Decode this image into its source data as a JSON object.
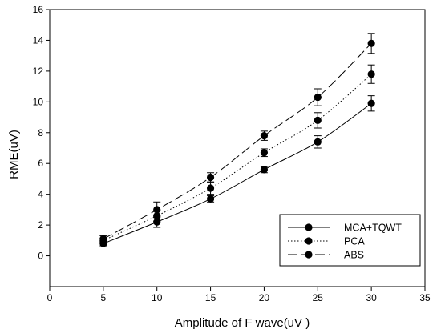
{
  "chart_data": {
    "type": "line",
    "xlabel": "Amplitude of F wave(uV  )",
    "ylabel": "RME(uV)",
    "xlim": [
      0,
      35
    ],
    "ylim": [
      -2,
      16
    ],
    "xticks": [
      0,
      5,
      10,
      15,
      20,
      25,
      30,
      35
    ],
    "yticks": [
      0,
      2,
      4,
      6,
      8,
      10,
      12,
      14,
      16
    ],
    "grid": false,
    "legend_position": "bottom-right",
    "x": [
      5,
      10,
      15,
      20,
      25,
      30
    ],
    "series": [
      {
        "name": "MCA+TQWT",
        "style": "solid",
        "values": [
          0.8,
          2.2,
          3.7,
          5.6,
          7.4,
          9.9
        ],
        "errors": [
          0.15,
          0.35,
          0.2,
          0.2,
          0.4,
          0.5
        ]
      },
      {
        "name": "PCA",
        "style": "dotted",
        "values": [
          1.0,
          2.6,
          4.4,
          6.7,
          8.8,
          11.8
        ],
        "errors": [
          0.15,
          0.35,
          0.4,
          0.25,
          0.5,
          0.6
        ]
      },
      {
        "name": "ABS",
        "style": "dashed",
        "values": [
          1.1,
          3.0,
          5.1,
          7.8,
          10.3,
          13.8
        ],
        "errors": [
          0.2,
          0.5,
          0.3,
          0.3,
          0.55,
          0.65
        ]
      }
    ]
  }
}
